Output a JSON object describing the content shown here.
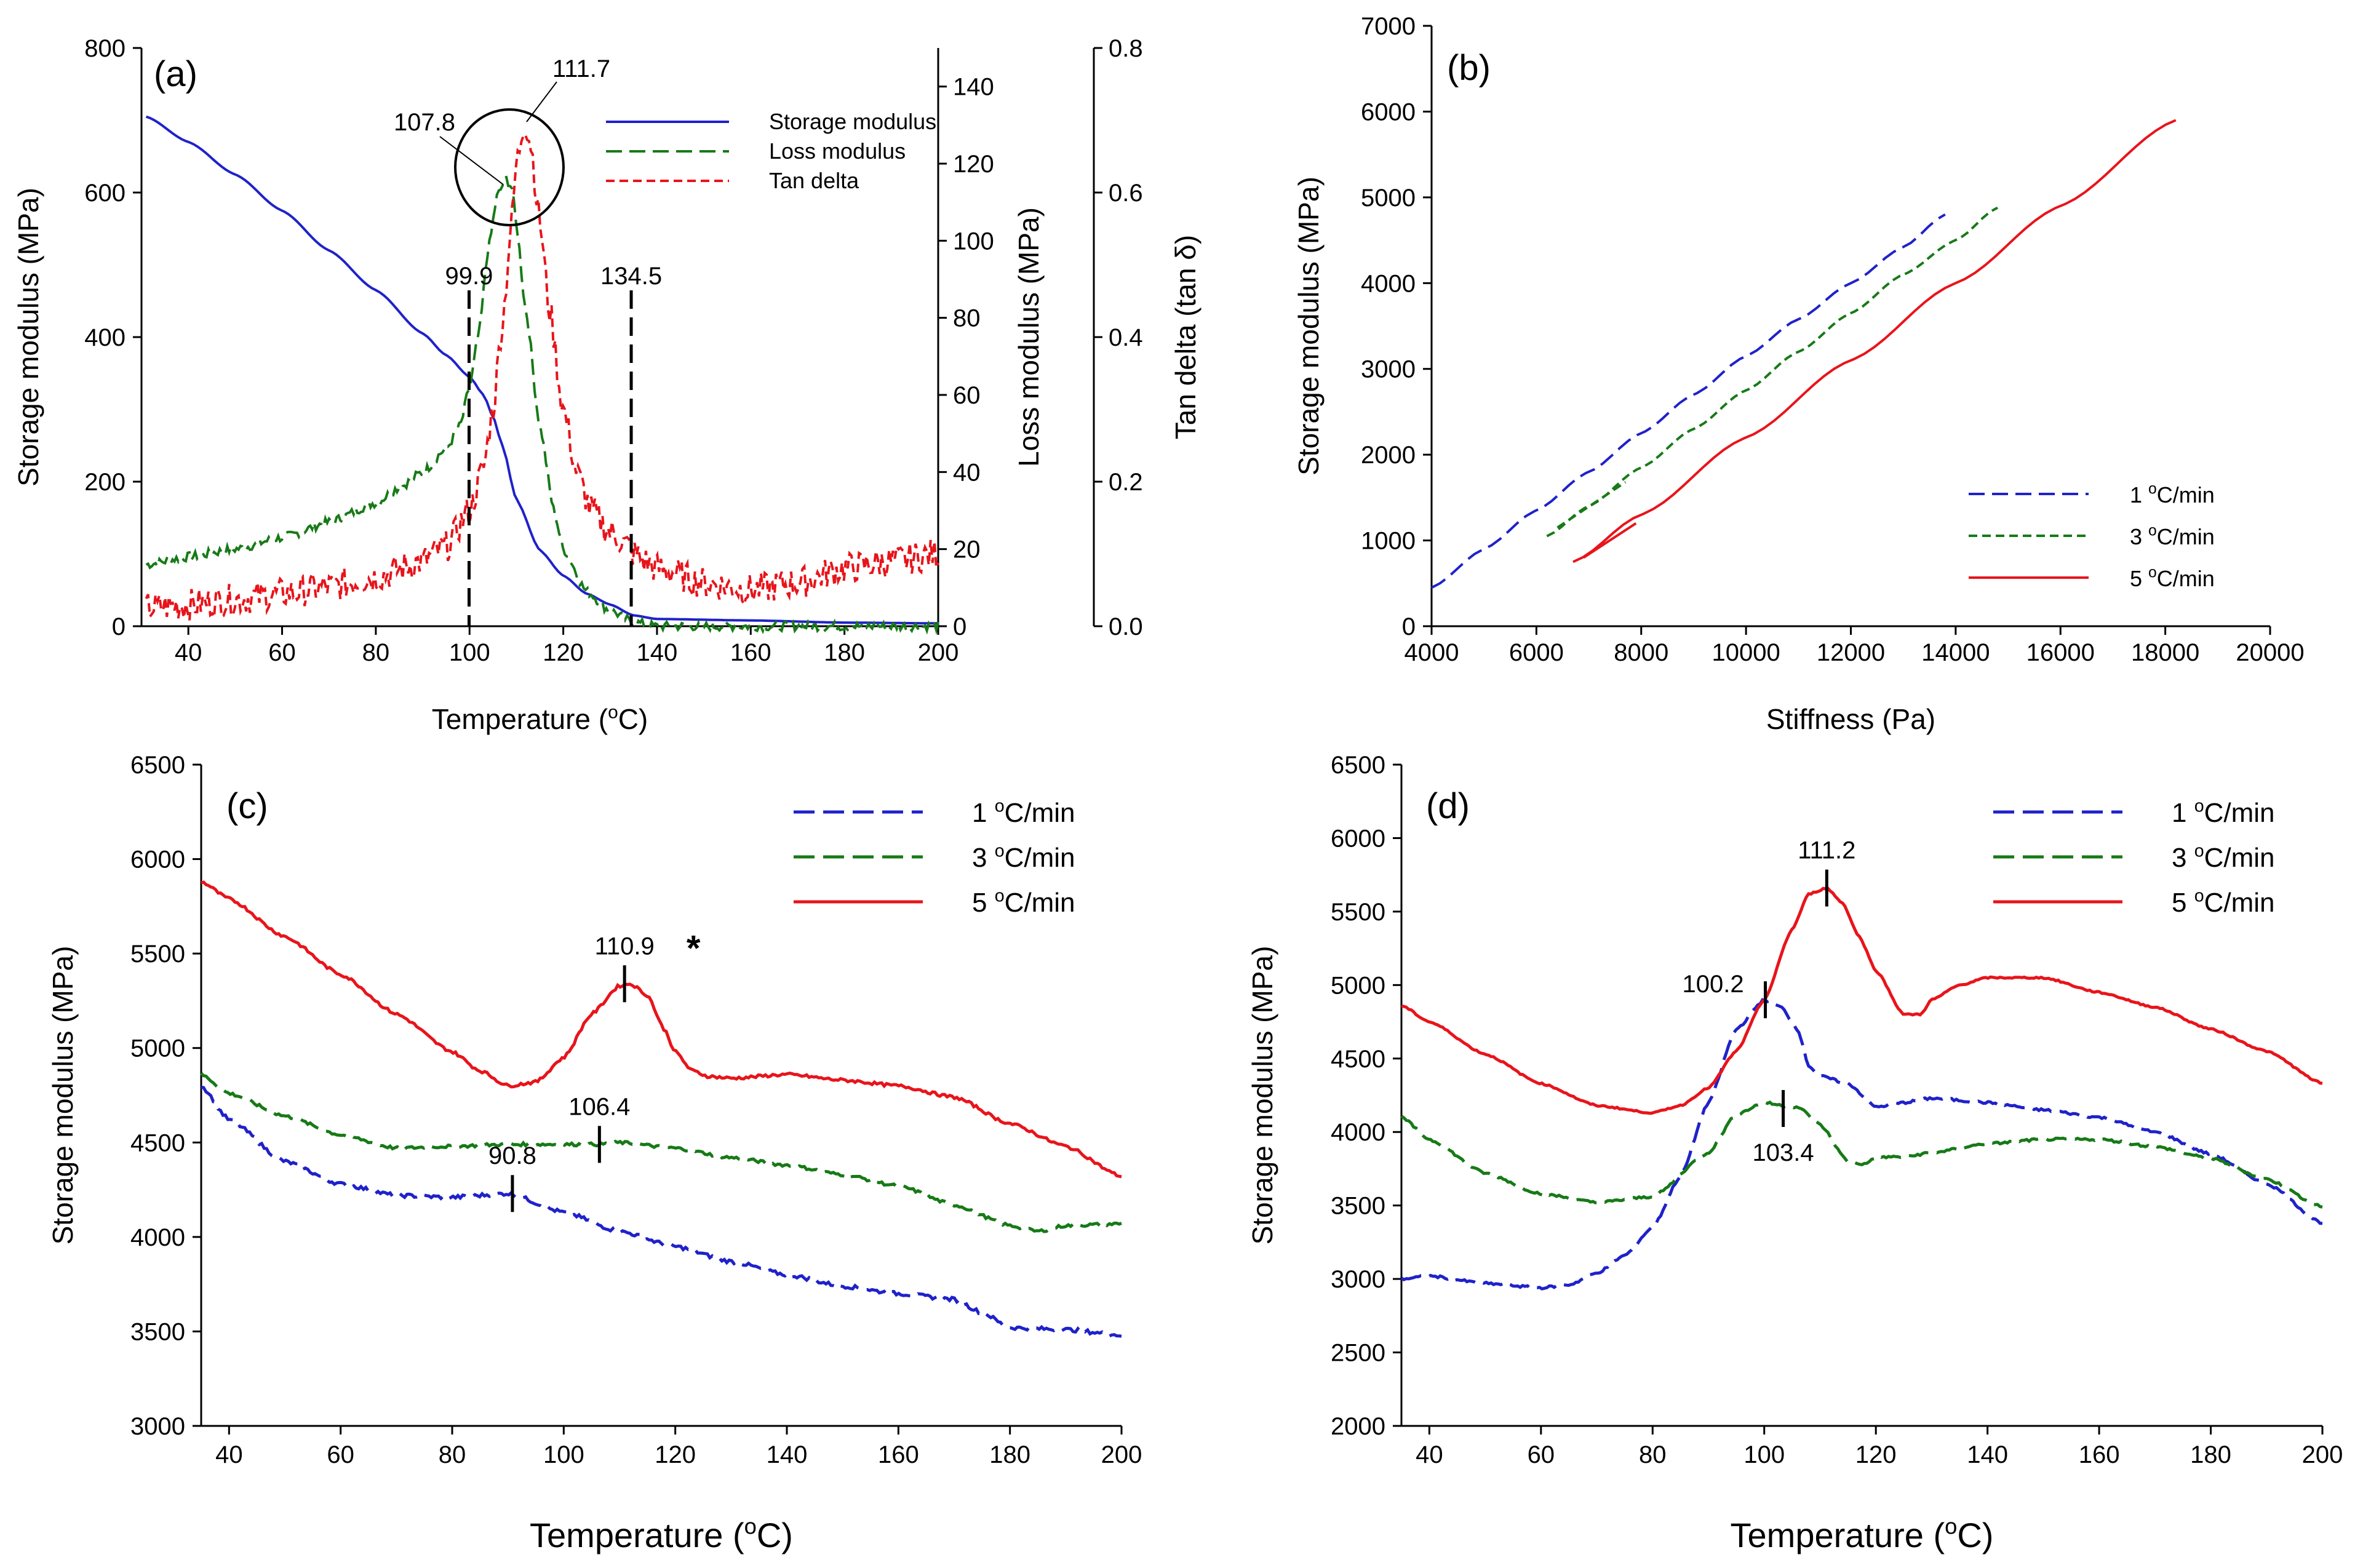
{
  "colors": {
    "blue": "#1f22c9",
    "green": "#177a17",
    "red": "#e8141b",
    "black": "#000000"
  },
  "chart_data": [
    {
      "id": "a",
      "type": "line",
      "panel_label": "(a)",
      "xlabel": "Temperature (",
      "xlabel_unit": "o",
      "xlabel_tail": "C)",
      "ylabel_left": "Storage modulus (MPa)",
      "ylabel_right1": "Loss modulus (MPa)",
      "ylabel_right2": "Tan delta (tan δ)",
      "xlim": [
        30,
        200
      ],
      "ylim_left": [
        0,
        800
      ],
      "ylim_right1": [
        0,
        150
      ],
      "ylim_right2": [
        0,
        0.8
      ],
      "x_ticks": [
        "40",
        "60",
        "80",
        "100",
        "120",
        "140",
        "160",
        "180",
        "200"
      ],
      "y_ticks_left": [
        "0",
        "200",
        "400",
        "600",
        "800"
      ],
      "y_ticks_right1": [
        "0",
        "20",
        "40",
        "60",
        "80",
        "100",
        "120",
        "140"
      ],
      "y_ticks_right2": [
        "0.0",
        "0.2",
        "0.4",
        "0.6",
        "0.8"
      ],
      "legend": [
        "Storage modulus",
        "Loss modulus",
        "Tan delta"
      ],
      "annotations": {
        "onset": "99.9",
        "endset": "134.5",
        "loss_peak": "107.8",
        "tan_peak": "111.7"
      },
      "series": [
        {
          "name": "Storage modulus",
          "axis": "left",
          "color": "blue",
          "dash": "solid",
          "noise": 0,
          "x": [
            31,
            40,
            50,
            60,
            70,
            80,
            90,
            95,
            100,
            103,
            105,
            107,
            110,
            115,
            120,
            125,
            130,
            135,
            140,
            160,
            180,
            200
          ],
          "y": [
            705,
            670,
            625,
            575,
            520,
            465,
            405,
            375,
            345,
            320,
            290,
            250,
            175,
            105,
            70,
            45,
            30,
            15,
            10,
            8,
            5,
            4
          ]
        },
        {
          "name": "Loss modulus",
          "axis": "right1",
          "color": "green",
          "dash": "long",
          "noise": 1.2,
          "x": [
            31,
            40,
            50,
            60,
            70,
            80,
            85,
            90,
            95,
            98,
            100,
            102,
            104,
            106,
            107.8,
            109,
            110,
            112,
            115,
            118,
            120,
            125,
            130,
            135,
            140,
            160,
            200
          ],
          "y": [
            16,
            18,
            20,
            23,
            27,
            32,
            36,
            40,
            46,
            52,
            62,
            76,
            98,
            112,
            116,
            114,
            104,
            82,
            52,
            30,
            20,
            9,
            4,
            1,
            0,
            0,
            0
          ]
        },
        {
          "name": "Tan delta",
          "axis": "right2",
          "color": "red",
          "dash": "short",
          "noise": 0.022,
          "x": [
            31,
            40,
            50,
            60,
            70,
            80,
            90,
            95,
            100,
            103,
            105,
            107,
            109,
            110,
            111.7,
            113,
            115,
            117,
            120,
            123,
            126,
            130,
            134,
            135,
            140,
            150,
            160,
            170,
            180,
            190,
            200
          ],
          "y": [
            0.025,
            0.03,
            0.037,
            0.045,
            0.055,
            0.068,
            0.09,
            0.11,
            0.16,
            0.22,
            0.3,
            0.42,
            0.56,
            0.64,
            0.7,
            0.67,
            0.56,
            0.44,
            0.3,
            0.21,
            0.16,
            0.13,
            0.11,
            0.1,
            0.08,
            0.06,
            0.05,
            0.06,
            0.08,
            0.09,
            0.1
          ]
        }
      ]
    },
    {
      "id": "b",
      "type": "line",
      "panel_label": "(b)",
      "xlabel": "Stiffness (Pa)",
      "ylabel": "Storage modulus (MPa)",
      "xlim": [
        4000,
        20000
      ],
      "ylim": [
        0,
        7000
      ],
      "x_ticks": [
        "4000",
        "6000",
        "8000",
        "10000",
        "12000",
        "14000",
        "16000",
        "18000",
        "20000"
      ],
      "y_ticks": [
        "0",
        "1000",
        "2000",
        "3000",
        "4000",
        "5000",
        "6000",
        "7000"
      ],
      "legend": [
        "1 ",
        "3 ",
        "5 "
      ],
      "legend_unit_sup": "o",
      "legend_unit_tail": "C/min",
      "series": [
        {
          "name": "1 °C/min",
          "color": "blue",
          "dash": "long",
          "noise": 0,
          "x": [
            4000,
            5000,
            6000,
            7000,
            8000,
            9000,
            10000,
            11000,
            12000,
            13000,
            13800
          ],
          "y": [
            450,
            900,
            1350,
            1800,
            2250,
            2700,
            3150,
            3580,
            4000,
            4420,
            4800
          ]
        },
        {
          "name": "3 °C/min",
          "color": "green",
          "dash": "short",
          "noise": 0,
          "x": [
            6200,
            7000,
            8000,
            9000,
            10000,
            11000,
            12000,
            13000,
            14000,
            14800
          ],
          "y": [
            1050,
            1400,
            1850,
            2300,
            2750,
            3200,
            3650,
            4100,
            4500,
            4880
          ]
        },
        {
          "name": "5 °C/min",
          "color": "red",
          "dash": "solid",
          "noise": 0,
          "x": [
            6700,
            8000,
            10000,
            12000,
            14000,
            16000,
            18200
          ],
          "y": [
            750,
            1300,
            2200,
            3100,
            4000,
            4900,
            5900
          ]
        }
      ]
    },
    {
      "id": "c",
      "type": "line",
      "panel_label": "(c)",
      "xlabel": "Temperature (",
      "xlabel_unit": "o",
      "xlabel_tail": "C)",
      "ylabel": "Storage modulus (MPa)",
      "xlim": [
        35,
        200
      ],
      "ylim": [
        3000,
        6500
      ],
      "x_ticks": [
        "40",
        "60",
        "80",
        "100",
        "120",
        "140",
        "160",
        "180",
        "200"
      ],
      "y_ticks": [
        "3000",
        "3500",
        "4000",
        "4500",
        "5000",
        "5500",
        "6000",
        "6500"
      ],
      "legend": [
        "1 ",
        "3 ",
        "5 "
      ],
      "legend_unit_sup": "o",
      "legend_unit_tail": "C/min",
      "annotations": {
        "blue_mark": "90.8",
        "green_mark": "106.4",
        "red_mark": "110.9",
        "asterisk": "*"
      },
      "series": [
        {
          "name": "1 °C/min",
          "color": "blue",
          "dash": "long",
          "noise": 10,
          "x": [
            35,
            40,
            50,
            60,
            70,
            80,
            90,
            100,
            110,
            120,
            130,
            140,
            150,
            160,
            170,
            175,
            180,
            190,
            200
          ],
          "y": [
            4800,
            4620,
            4400,
            4280,
            4220,
            4210,
            4230,
            4130,
            4030,
            3950,
            3870,
            3800,
            3740,
            3700,
            3670,
            3600,
            3520,
            3510,
            3480
          ]
        },
        {
          "name": "3 °C/min",
          "color": "green",
          "dash": "long",
          "noise": 8,
          "x": [
            35,
            40,
            50,
            60,
            70,
            80,
            90,
            100,
            106.4,
            110,
            120,
            130,
            140,
            150,
            160,
            170,
            180,
            185,
            190,
            200
          ],
          "y": [
            4860,
            4760,
            4640,
            4540,
            4470,
            4480,
            4490,
            4490,
            4490,
            4500,
            4470,
            4420,
            4380,
            4330,
            4270,
            4170,
            4060,
            4030,
            4060,
            4070
          ]
        },
        {
          "name": "5 °C/min",
          "color": "red",
          "dash": "solid",
          "noise": 8,
          "x": [
            35,
            40,
            50,
            60,
            70,
            80,
            85,
            90,
            95,
            100,
            105,
            110,
            112,
            115,
            118,
            120,
            123,
            126,
            130,
            140,
            150,
            160,
            170,
            180,
            190,
            200
          ],
          "y": [
            5880,
            5790,
            5590,
            5390,
            5180,
            4980,
            4880,
            4800,
            4820,
            4950,
            5180,
            5330,
            5340,
            5280,
            5100,
            4980,
            4880,
            4850,
            4840,
            4860,
            4830,
            4800,
            4740,
            4600,
            4480,
            4320
          ]
        }
      ]
    },
    {
      "id": "d",
      "type": "line",
      "panel_label": "(d)",
      "xlabel": "Temperature (",
      "xlabel_unit": "o",
      "xlabel_tail": "C)",
      "ylabel": "Storage modulus (MPa)",
      "xlim": [
        35,
        200
      ],
      "ylim": [
        2000,
        6500
      ],
      "x_ticks": [
        "40",
        "60",
        "80",
        "100",
        "120",
        "140",
        "160",
        "180",
        "200"
      ],
      "y_ticks": [
        "2000",
        "2500",
        "3000",
        "3500",
        "4000",
        "4500",
        "5000",
        "5500",
        "6000",
        "6500"
      ],
      "legend": [
        "1 ",
        "3 ",
        "5 "
      ],
      "legend_unit_sup": "o",
      "legend_unit_tail": "C/min",
      "annotations": {
        "blue_mark": "100.2",
        "green_mark": "103.4",
        "red_mark": "111.2"
      },
      "series": [
        {
          "name": "1 °C/min",
          "color": "blue",
          "dash": "long",
          "noise": 8,
          "x": [
            35,
            40,
            50,
            60,
            65,
            70,
            75,
            80,
            85,
            90,
            95,
            100,
            103,
            106,
            108,
            110,
            115,
            120,
            125,
            130,
            140,
            150,
            160,
            170,
            180,
            190,
            200
          ],
          "y": [
            3000,
            3020,
            2970,
            2940,
            2960,
            3040,
            3160,
            3350,
            3700,
            4200,
            4700,
            4900,
            4850,
            4700,
            4450,
            4380,
            4330,
            4170,
            4200,
            4230,
            4200,
            4150,
            4100,
            4000,
            3850,
            3650,
            3380
          ]
        },
        {
          "name": "3 °C/min",
          "color": "green",
          "dash": "long",
          "noise": 8,
          "x": [
            35,
            40,
            50,
            60,
            70,
            80,
            90,
            95,
            100,
            103.4,
            106,
            110,
            115,
            118,
            120,
            125,
            130,
            140,
            150,
            160,
            170,
            180,
            190,
            200
          ],
          "y": [
            4100,
            3950,
            3720,
            3580,
            3520,
            3560,
            3860,
            4120,
            4200,
            4180,
            4170,
            4050,
            3800,
            3780,
            3830,
            3830,
            3860,
            3920,
            3950,
            3950,
            3900,
            3820,
            3680,
            3490
          ]
        },
        {
          "name": "5 °C/min",
          "color": "red",
          "dash": "solid",
          "noise": 5,
          "x": [
            35,
            40,
            50,
            60,
            70,
            80,
            85,
            90,
            95,
            100,
            105,
            108,
            111.2,
            114,
            117,
            120,
            125,
            128,
            130,
            135,
            140,
            150,
            160,
            170,
            180,
            190,
            200
          ],
          "y": [
            4860,
            4750,
            4530,
            4330,
            4180,
            4130,
            4180,
            4300,
            4550,
            4900,
            5380,
            5620,
            5660,
            5560,
            5330,
            5100,
            4800,
            4800,
            4900,
            5000,
            5050,
            5050,
            4950,
            4850,
            4700,
            4550,
            4330
          ]
        }
      ]
    }
  ]
}
